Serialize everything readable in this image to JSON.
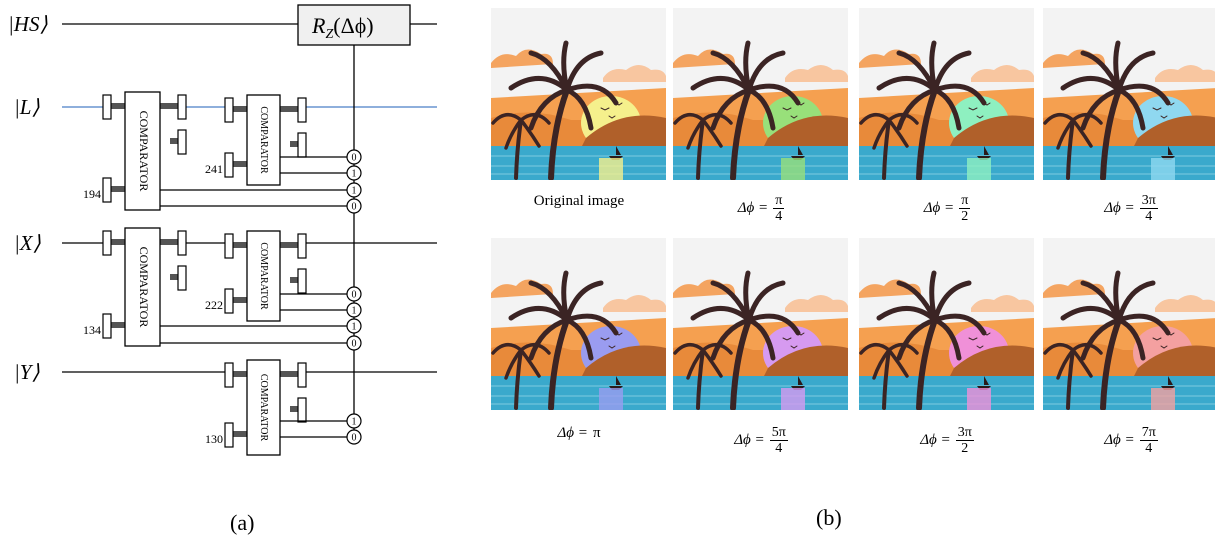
{
  "circuit": {
    "wires": [
      "|HS⟩",
      "|L⟩",
      "|X⟩",
      "|Y⟩"
    ],
    "gate": {
      "base": "R",
      "sub": "Z",
      "arg": "(Δϕ)"
    },
    "comparators": [
      "COMPARATOR",
      "COMPARATOR",
      "COMPARATOR",
      "COMPARATOR",
      "COMPARATOR"
    ],
    "thresholds": [
      "194",
      "241",
      "134",
      "222",
      "130"
    ],
    "controls": [
      "0",
      "1",
      "1",
      "0",
      "0",
      "1",
      "1",
      "0",
      "1",
      "0"
    ],
    "caption": "(a)"
  },
  "panel_b": {
    "images": [
      {
        "caption": {
          "text": "Original image"
        },
        "sun": "#f5f08c"
      },
      {
        "caption": {
          "lhs": "Δϕ =",
          "num": "π",
          "den": "4"
        },
        "sun": "#98e07a"
      },
      {
        "caption": {
          "lhs": "Δϕ =",
          "num": "π",
          "den": "2"
        },
        "sun": "#8ef0c0"
      },
      {
        "caption": {
          "lhs": "Δϕ =",
          "num": "3π",
          "den": "4"
        },
        "sun": "#8fd8f0"
      },
      {
        "caption": {
          "lhs": "Δϕ =",
          "rhs": "π"
        },
        "sun": "#9a9cf0"
      },
      {
        "caption": {
          "lhs": "Δϕ =",
          "num": "5π",
          "den": "4"
        },
        "sun": "#d69af0"
      },
      {
        "caption": {
          "lhs": "Δϕ =",
          "num": "3π",
          "den": "2"
        },
        "sun": "#f090d8"
      },
      {
        "caption": {
          "lhs": "Δϕ =",
          "num": "7π",
          "den": "4"
        },
        "sun": "#f4a0a0"
      }
    ],
    "caption": "(b)"
  }
}
